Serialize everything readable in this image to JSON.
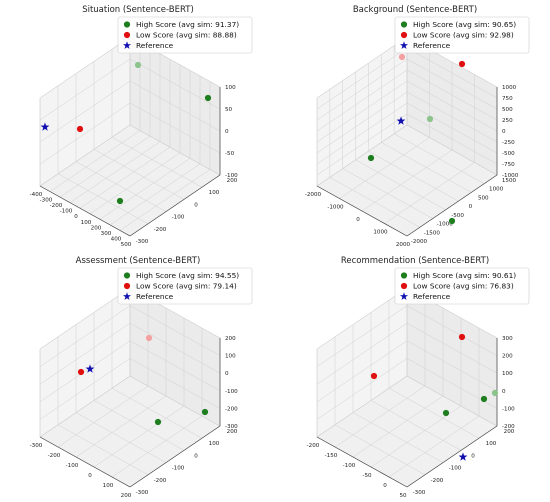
{
  "chart_data": [
    {
      "type": "scatter",
      "title": "Situation (Sentence-BERT)",
      "legend": {
        "placement": "top-right",
        "entries": [
          {
            "label": "High Score (avg sim: 91.37)",
            "color": "#1e7d1e",
            "marker": "circle"
          },
          {
            "label": "Low Score (avg sim: 88.88)",
            "color": "#e01010",
            "marker": "circle"
          },
          {
            "label": "Reference",
            "color": "#1010b0",
            "marker": "star"
          }
        ]
      },
      "x_ticks": [
        "-400",
        "-300",
        "-200",
        "-100",
        "0",
        "100",
        "200",
        "300",
        "400",
        "500"
      ],
      "y_ticks": [
        "-300",
        "-200",
        "-100",
        "0",
        "100",
        "200"
      ],
      "z_ticks": [
        "-100",
        "-50",
        "0",
        "50",
        "100"
      ],
      "grid": true
    },
    {
      "type": "scatter",
      "title": "Background (Sentence-BERT)",
      "legend": {
        "placement": "top-right",
        "entries": [
          {
            "label": "High Score (avg sim: 90.65)",
            "color": "#1e7d1e",
            "marker": "circle"
          },
          {
            "label": "Low Score (avg sim: 92.98)",
            "color": "#e01010",
            "marker": "circle"
          },
          {
            "label": "Reference",
            "color": "#1010b0",
            "marker": "star"
          }
        ]
      },
      "x_ticks": [
        "-2000",
        "-1000",
        "0",
        "1000",
        "2000"
      ],
      "y_ticks": [
        "-2000",
        "-1500",
        "-1000",
        "-500",
        "0",
        "500",
        "1000",
        "1500"
      ],
      "z_ticks": [
        "-1000",
        "-750",
        "-500",
        "-250",
        "0",
        "250",
        "500",
        "750",
        "1000"
      ],
      "grid": true
    },
    {
      "type": "scatter",
      "title": "Assessment (Sentence-BERT)",
      "legend": {
        "placement": "top-right",
        "entries": [
          {
            "label": "High Score (avg sim: 94.55)",
            "color": "#1e7d1e",
            "marker": "circle"
          },
          {
            "label": "Low Score (avg sim: 79.14)",
            "color": "#e01010",
            "marker": "circle"
          },
          {
            "label": "Reference",
            "color": "#1010b0",
            "marker": "star"
          }
        ]
      },
      "x_ticks": [
        "-300",
        "-200",
        "-100",
        "0",
        "100",
        "200"
      ],
      "y_ticks": [
        "-300",
        "-200",
        "-100",
        "0",
        "100",
        "200"
      ],
      "z_ticks": [
        "-300",
        "-200",
        "-100",
        "0",
        "100",
        "200"
      ],
      "grid": true
    },
    {
      "type": "scatter",
      "title": "Recommendation (Sentence-BERT)",
      "legend": {
        "placement": "top-right",
        "entries": [
          {
            "label": "High Score (avg sim: 90.61)",
            "color": "#1e7d1e",
            "marker": "circle"
          },
          {
            "label": "Low Score (avg sim: 76.83)",
            "color": "#e01010",
            "marker": "circle"
          },
          {
            "label": "Reference",
            "color": "#1010b0",
            "marker": "star"
          }
        ]
      },
      "x_ticks": [
        "-200",
        "-150",
        "-100",
        "-50",
        "0",
        "50"
      ],
      "y_ticks": [
        "-300",
        "-200",
        "-100",
        "0",
        "100",
        "200"
      ],
      "z_ticks": [
        "-200",
        "-100",
        "0",
        "100",
        "200",
        "300"
      ],
      "grid": true
    }
  ]
}
